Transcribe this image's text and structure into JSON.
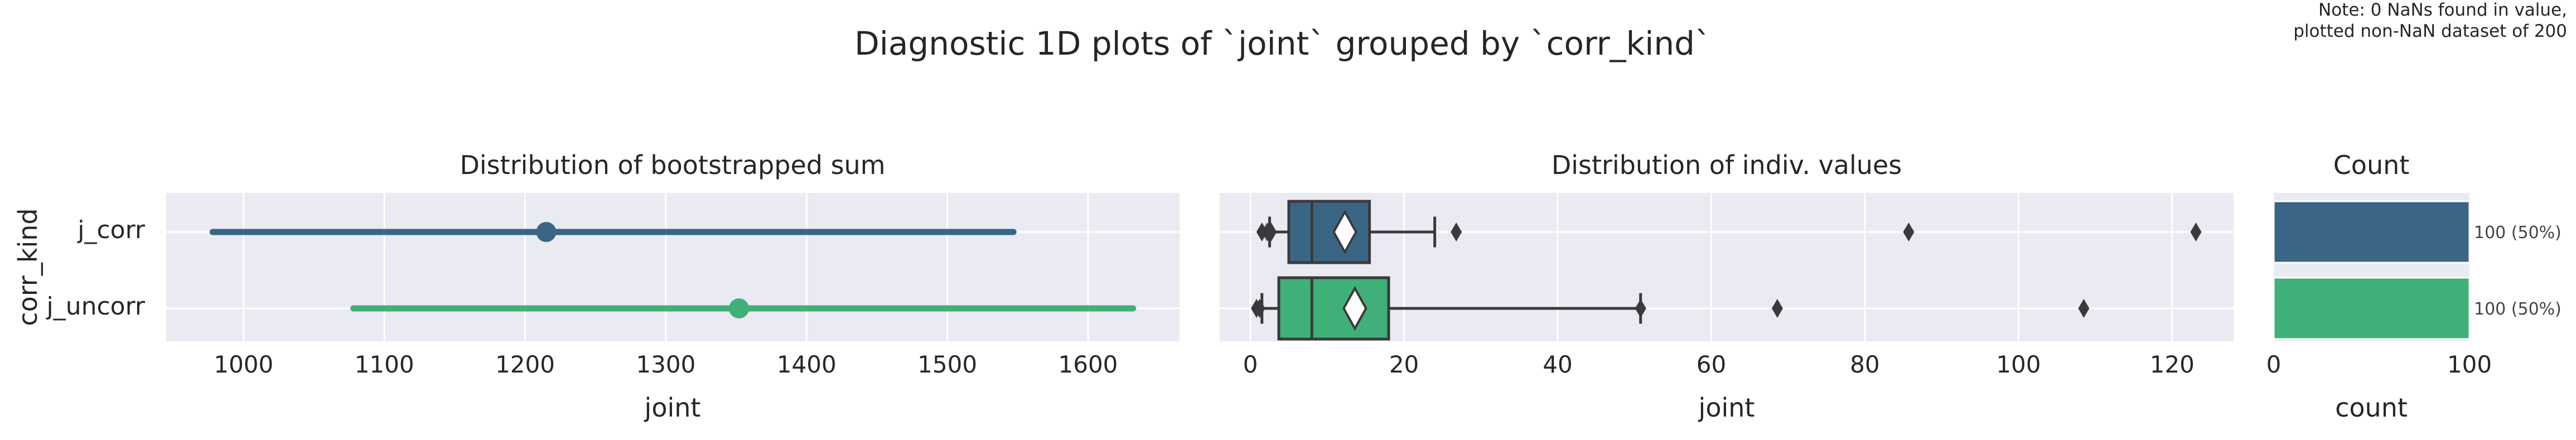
{
  "figure": {
    "title": "Diagnostic 1D plots of `joint` grouped by `corr_kind`",
    "note_lines": [
      "Note: 0 NaNs found in value,",
      "plotted non-NaN dataset of 200"
    ]
  },
  "colors": {
    "j_corr": "#3b6584",
    "j_uncorr": "#3fb077",
    "panel_bg": "#eaeaf2",
    "grid": "#ffffff",
    "dark": "#3a3a3a"
  },
  "chart_data": [
    {
      "type": "pointrange",
      "title": "Distribution of bootstrapped sum",
      "xlabel": "joint",
      "ylabel": "corr_kind",
      "categories": [
        "j_corr",
        "j_uncorr"
      ],
      "xlim": [
        945,
        1665
      ],
      "xticks": [
        1000,
        1100,
        1200,
        1300,
        1400,
        1500,
        1600
      ],
      "grid": true,
      "series": [
        {
          "category": "j_corr",
          "low": 978,
          "point": 1215,
          "high": 1547
        },
        {
          "category": "j_uncorr",
          "low": 1078,
          "point": 1352,
          "high": 1632
        }
      ]
    },
    {
      "type": "box",
      "title": "Distribution of indiv. values",
      "xlabel": "joint",
      "categories": [
        "j_corr",
        "j_uncorr"
      ],
      "xlim": [
        -4,
        128
      ],
      "xticks": [
        0,
        20,
        40,
        60,
        80,
        100,
        120
      ],
      "grid": true,
      "series": [
        {
          "category": "j_corr",
          "whisker_low": 2.5,
          "q1": 5,
          "median": 8,
          "q3": 15.5,
          "whisker_high": 24,
          "mean": 12.3,
          "outliers": [
            1.5,
            2.2,
            2.7,
            26.8,
            85.7,
            123.1
          ]
        },
        {
          "category": "j_uncorr",
          "whisker_low": 1.5,
          "q1": 3.7,
          "median": 8,
          "q3": 18,
          "whisker_high": 50.8,
          "mean": 13.6,
          "outliers": [
            0.8,
            1.2,
            50.8,
            68.6,
            108.5
          ]
        }
      ]
    },
    {
      "type": "bar",
      "title": "Count",
      "xlabel": "count",
      "categories": [
        "j_corr",
        "j_uncorr"
      ],
      "values": [
        100,
        100
      ],
      "labels": [
        "100 (50%)",
        "100 (50%)"
      ],
      "xlim": [
        0,
        100
      ],
      "xticks": [
        0,
        100
      ],
      "grid": false
    }
  ]
}
